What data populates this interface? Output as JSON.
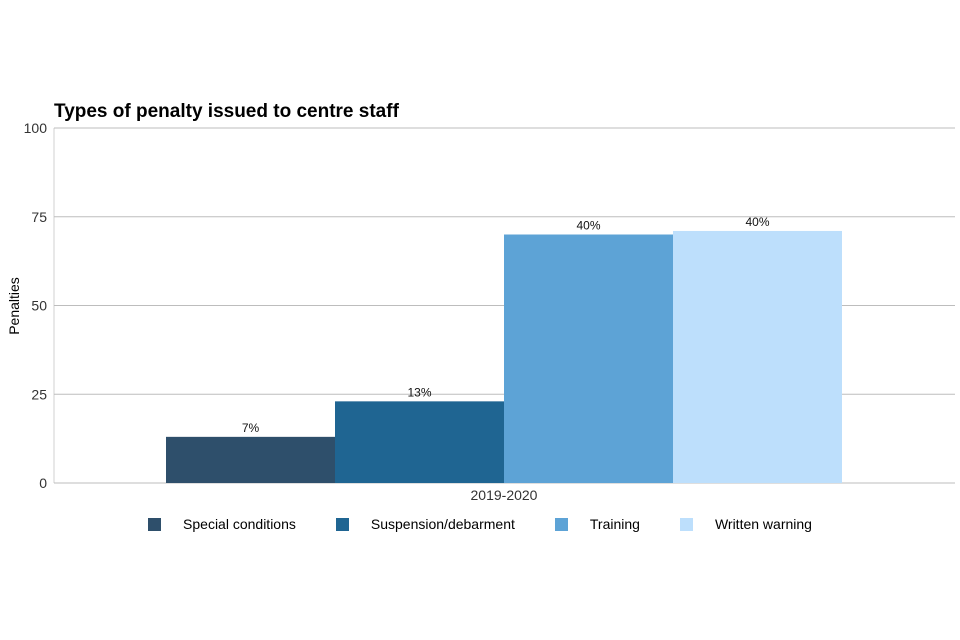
{
  "chart_data": {
    "type": "bar",
    "title": "Types of penalty issued to centre staff",
    "xlabel": "",
    "ylabel": "Penalties",
    "ylim": [
      0,
      100
    ],
    "yticks": [
      "0",
      "25",
      "50",
      "75",
      "100"
    ],
    "categories": [
      "2019-2020"
    ],
    "grid": true,
    "legend_position": "bottom",
    "series": [
      {
        "name": "Special conditions",
        "values": [
          13
        ],
        "label": "7%",
        "color": "#2e4f6b"
      },
      {
        "name": "Suspension/debarment",
        "values": [
          23
        ],
        "label": "13%",
        "color": "#1f6592"
      },
      {
        "name": "Training",
        "values": [
          70
        ],
        "label": "40%",
        "color": "#5da3d6"
      },
      {
        "name": "Written warning",
        "values": [
          71
        ],
        "label": "40%",
        "color": "#bddffc"
      }
    ]
  }
}
